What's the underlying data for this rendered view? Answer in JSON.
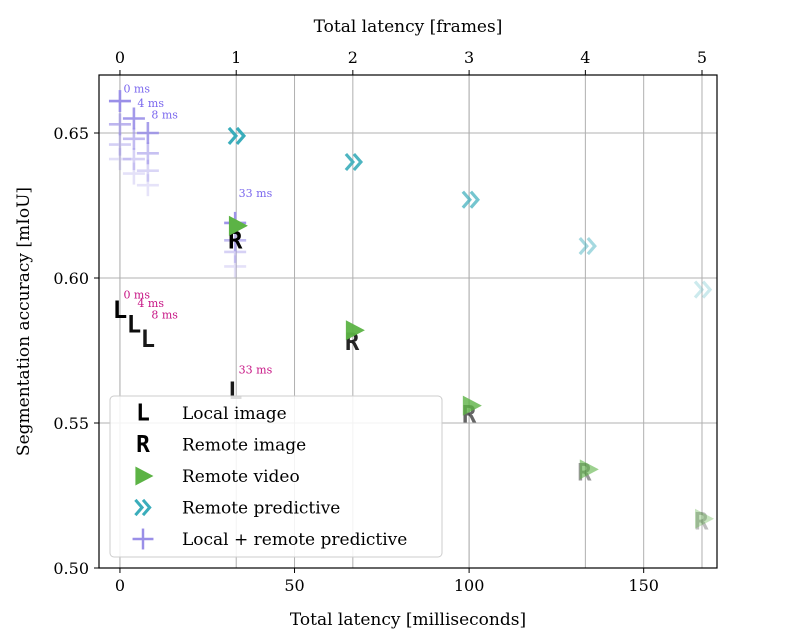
{
  "chart_data": {
    "type": "scatter",
    "xlabel": "Total latency [milliseconds]",
    "ylabel": "Segmentation accuracy [mIoU]",
    "x2label": "Total latency [frames]",
    "xlim": [
      -6,
      171
    ],
    "ylim": [
      0.5,
      0.67
    ],
    "xticks": [
      0,
      50,
      100,
      150
    ],
    "xtick_labels": [
      "0",
      "50",
      "100",
      "150"
    ],
    "x2ticks": [
      0,
      33.3,
      66.7,
      100,
      133.3,
      166.7
    ],
    "x2tick_labels": [
      "0",
      "1",
      "2",
      "3",
      "4",
      "5"
    ],
    "yticks": [
      0.5,
      0.55,
      0.6,
      0.65
    ],
    "ytick_labels": [
      "0.50",
      "0.55",
      "0.60",
      "0.65"
    ],
    "grid": true,
    "legend_position": "lower-left",
    "series": [
      {
        "name": "Local image",
        "marker": "L",
        "color": "#ee82ee",
        "x": [
          0,
          4,
          8,
          33
        ],
        "y": [
          0.589,
          0.584,
          0.579,
          0.561
        ],
        "alpha": [
          1,
          0.95,
          0.9,
          0.9
        ]
      },
      {
        "name": "Remote image",
        "marker": "R",
        "color": "#e9896a",
        "x": [
          33,
          66.5,
          100,
          133,
          166.5
        ],
        "y": [
          0.613,
          0.578,
          0.553,
          0.533,
          0.516
        ],
        "alpha": [
          1,
          0.85,
          0.6,
          0.4,
          0.25
        ]
      },
      {
        "name": "Remote video",
        "marker": "triangle",
        "color": "#5cb345",
        "x": [
          33.5,
          67,
          100.5,
          134,
          167
        ],
        "y": [
          0.618,
          0.582,
          0.556,
          0.534,
          0.517
        ],
        "alpha": [
          1,
          0.95,
          0.8,
          0.6,
          0.35
        ]
      },
      {
        "name": "Remote predictive",
        "marker": "chevron",
        "color": "#3aadbb",
        "x": [
          33.5,
          67,
          100.5,
          134,
          167
        ],
        "y": [
          0.649,
          0.64,
          0.627,
          0.611,
          0.596
        ],
        "alpha": [
          1,
          0.9,
          0.7,
          0.45,
          0.25
        ]
      },
      {
        "name": "Local + remote predictive",
        "marker": "plus",
        "color": "#9a8fe8",
        "x": [
          0,
          0,
          0,
          0,
          4,
          4,
          4,
          4,
          8,
          8,
          8,
          8,
          33,
          33,
          33,
          33
        ],
        "y": [
          0.661,
          0.653,
          0.646,
          0.641,
          0.655,
          0.648,
          0.641,
          0.636,
          0.65,
          0.643,
          0.637,
          0.632,
          0.619,
          0.613,
          0.609,
          0.604
        ],
        "alpha": [
          1,
          0.65,
          0.42,
          0.28,
          0.9,
          0.6,
          0.4,
          0.26,
          0.85,
          0.55,
          0.36,
          0.24,
          0.95,
          0.6,
          0.4,
          0.26
        ]
      }
    ],
    "annotations": [
      {
        "text": "0 ms",
        "x": 1,
        "y": 0.664,
        "color": "#7b68ee"
      },
      {
        "text": "4 ms",
        "x": 5,
        "y": 0.659,
        "color": "#7b68ee"
      },
      {
        "text": "8 ms",
        "x": 9,
        "y": 0.655,
        "color": "#7b68ee"
      },
      {
        "text": "33 ms",
        "x": 34,
        "y": 0.628,
        "color": "#7b68ee"
      },
      {
        "text": "0 ms",
        "x": 1,
        "y": 0.593,
        "color": "#c71585"
      },
      {
        "text": "4 ms",
        "x": 5,
        "y": 0.59,
        "color": "#c71585"
      },
      {
        "text": "8 ms",
        "x": 9,
        "y": 0.586,
        "color": "#c71585"
      },
      {
        "text": "33 ms",
        "x": 34,
        "y": 0.567,
        "color": "#c71585"
      }
    ]
  }
}
